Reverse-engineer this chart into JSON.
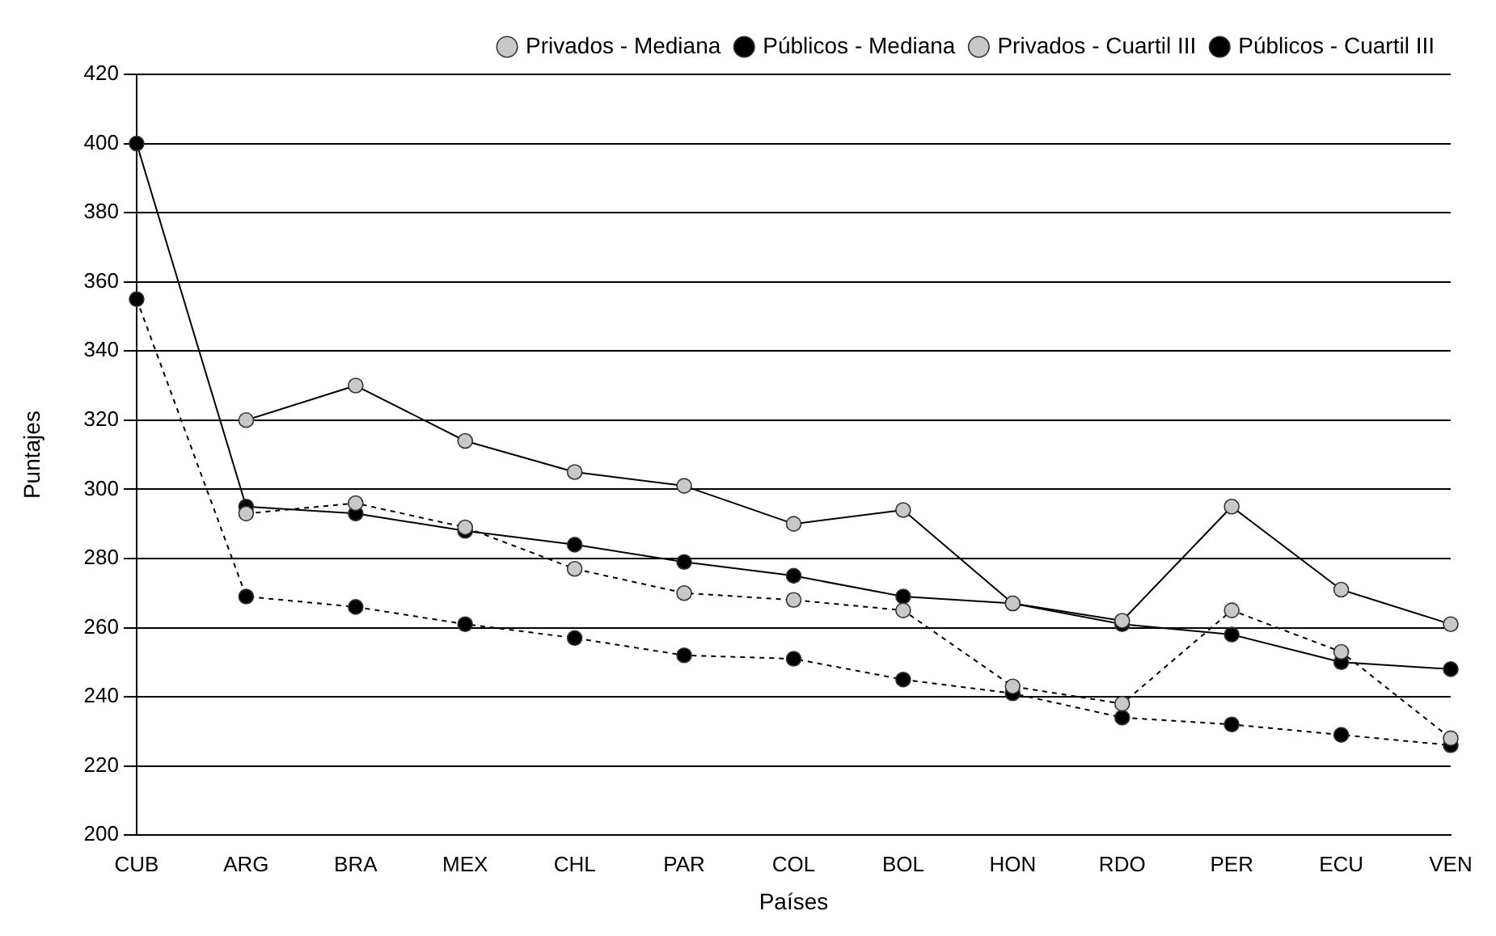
{
  "chart_data": {
    "type": "line",
    "xlabel": "Países",
    "ylabel": "Puntajes",
    "categories": [
      "CUB",
      "ARG",
      "BRA",
      "MEX",
      "CHL",
      "PAR",
      "COL",
      "BOL",
      "HON",
      "RDO",
      "PER",
      "ECU",
      "VEN"
    ],
    "ylim": [
      200,
      420
    ],
    "yticks": [
      200,
      220,
      240,
      260,
      280,
      300,
      320,
      340,
      360,
      380,
      400,
      420
    ],
    "grid": "y",
    "legend": "top right",
    "marker": "circle",
    "series": [
      {
        "name": "Públicos - Cuartil III",
        "color": "#000000",
        "line_style": "solid",
        "values": [
          400,
          295,
          293,
          288,
          284,
          279,
          275,
          269,
          267,
          261,
          258,
          250,
          248
        ]
      },
      {
        "name": "Privados - Cuartil III",
        "color": "#c8c8c8",
        "line_style": "solid",
        "values": [
          null,
          320,
          330,
          314,
          305,
          301,
          290,
          294,
          267,
          262,
          295,
          271,
          261
        ]
      },
      {
        "name": "Públicos - Mediana",
        "color": "#000000",
        "line_style": "dashed",
        "values": [
          355,
          269,
          266,
          261,
          257,
          252,
          251,
          245,
          241,
          234,
          232,
          229,
          226
        ]
      },
      {
        "name": "Privados - Mediana",
        "color": "#c8c8c8",
        "line_style": "dashed",
        "values": [
          null,
          293,
          296,
          289,
          277,
          270,
          268,
          265,
          243,
          238,
          265,
          253,
          228
        ]
      }
    ]
  }
}
